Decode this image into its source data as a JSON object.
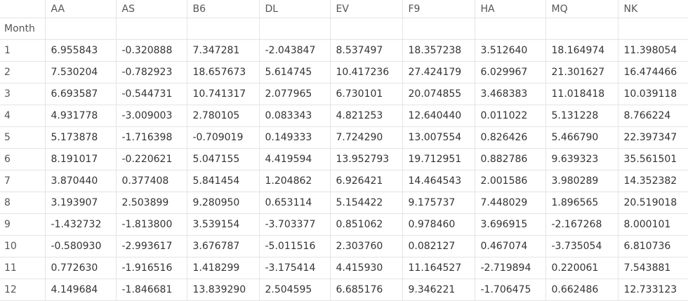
{
  "table": {
    "columns": [
      "AA",
      "AS",
      "B6",
      "DL",
      "EV",
      "F9",
      "HA",
      "MQ",
      "NK"
    ],
    "index_name": "Month",
    "rows": [
      {
        "month": "1",
        "values": [
          "6.955843",
          "-0.320888",
          "7.347281",
          "-2.043847",
          "8.537497",
          "18.357238",
          "3.512640",
          "18.164974",
          "11.398054"
        ]
      },
      {
        "month": "2",
        "values": [
          "7.530204",
          "-0.782923",
          "18.657673",
          "5.614745",
          "10.417236",
          "27.424179",
          "6.029967",
          "21.301627",
          "16.474466"
        ]
      },
      {
        "month": "3",
        "values": [
          "6.693587",
          "-0.544731",
          "10.741317",
          "2.077965",
          "6.730101",
          "20.074855",
          "3.468383",
          "11.018418",
          "10.039118"
        ]
      },
      {
        "month": "4",
        "values": [
          "4.931778",
          "-3.009003",
          "2.780105",
          "0.083343",
          "4.821253",
          "12.640440",
          "0.011022",
          "5.131228",
          "8.766224"
        ]
      },
      {
        "month": "5",
        "values": [
          "5.173878",
          "-1.716398",
          "-0.709019",
          "0.149333",
          "7.724290",
          "13.007554",
          "0.826426",
          "5.466790",
          "22.397347"
        ]
      },
      {
        "month": "6",
        "values": [
          "8.191017",
          "-0.220621",
          "5.047155",
          "4.419594",
          "13.952793",
          "19.712951",
          "0.882786",
          "9.639323",
          "35.561501"
        ]
      },
      {
        "month": "7",
        "values": [
          "3.870440",
          "0.377408",
          "5.841454",
          "1.204862",
          "6.926421",
          "14.464543",
          "2.001586",
          "3.980289",
          "14.352382"
        ]
      },
      {
        "month": "8",
        "values": [
          "3.193907",
          "2.503899",
          "9.280950",
          "0.653114",
          "5.154422",
          "9.175737",
          "7.448029",
          "1.896565",
          "20.519018"
        ]
      },
      {
        "month": "9",
        "values": [
          "-1.432732",
          "-1.813800",
          "3.539154",
          "-3.703377",
          "0.851062",
          "0.978460",
          "3.696915",
          "-2.167268",
          "8.000101"
        ]
      },
      {
        "month": "10",
        "values": [
          "-0.580930",
          "-2.993617",
          "3.676787",
          "-5.011516",
          "2.303760",
          "0.082127",
          "0.467074",
          "-3.735054",
          "6.810736"
        ]
      },
      {
        "month": "11",
        "values": [
          "0.772630",
          "-1.916516",
          "1.418299",
          "-3.175414",
          "4.415930",
          "11.164527",
          "-2.719894",
          "0.220061",
          "7.543881"
        ]
      },
      {
        "month": "12",
        "values": [
          "4.149684",
          "-1.846681",
          "13.839290",
          "2.504595",
          "6.685176",
          "9.346221",
          "-1.706475",
          "0.662486",
          "12.733123"
        ]
      }
    ]
  }
}
